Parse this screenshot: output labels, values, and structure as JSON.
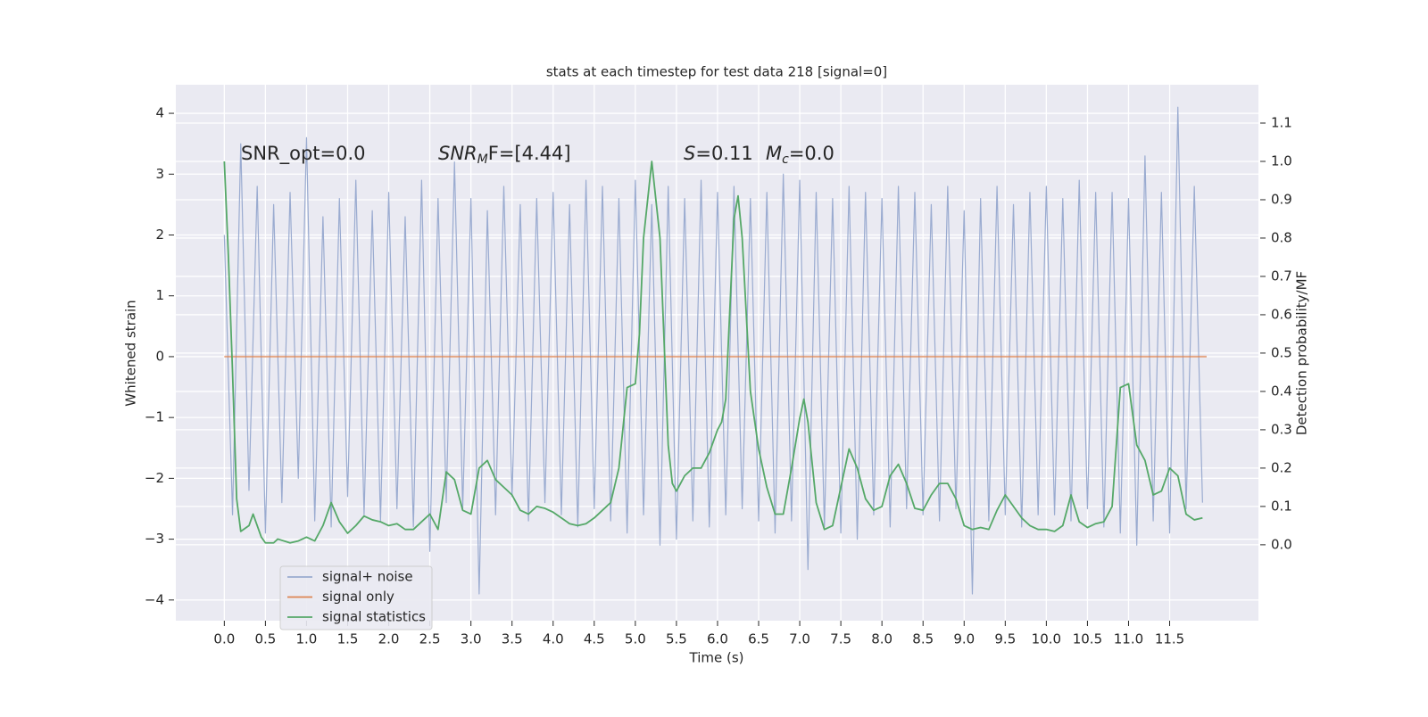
{
  "chart_data": {
    "type": "line",
    "title": "stats at each timestep for test data 218 [signal=0]",
    "xlabel": "Time (s)",
    "ylabel": "Whitened strain",
    "y2label": "Detection probability/MF",
    "xlim": [
      -0.59,
      12.58
    ],
    "ylim": [
      -4.34,
      4.47
    ],
    "y2lim": [
      -0.198,
      1.2
    ],
    "xticks": [
      {
        "value": 0,
        "label": "0.0"
      },
      0.5,
      {
        "value": 1,
        "label": "1.0"
      },
      1.5,
      {
        "value": 2,
        "label": "2.0"
      },
      2.5,
      {
        "value": 3,
        "label": "3.0"
      },
      3.5,
      {
        "value": 4,
        "label": "4.0"
      },
      4.5,
      {
        "value": 5,
        "label": "5.0"
      },
      5.5,
      {
        "value": 6,
        "label": "6.0"
      },
      6.5,
      {
        "value": 7,
        "label": "7.0"
      },
      7.5,
      {
        "value": 8,
        "label": "8.0"
      },
      8.5,
      {
        "value": 9,
        "label": "9.0"
      },
      9.5,
      {
        "value": 10,
        "label": "10.0"
      },
      10.5,
      {
        "value": 11,
        "label": "11.0"
      },
      11.5
    ],
    "yticks": [
      {
        "value": -4,
        "label": "−4"
      },
      {
        "value": -3,
        "label": "−3"
      },
      {
        "value": -2,
        "label": "−2"
      },
      {
        "value": -1,
        "label": "−1"
      },
      0,
      1,
      2,
      3,
      4
    ],
    "y2ticks": [
      {
        "value": 0,
        "label": "0.0"
      },
      0.1,
      0.2,
      0.3,
      0.4,
      0.5,
      0.6,
      0.7,
      0.8,
      0.9,
      {
        "value": 1,
        "label": "1.0"
      },
      1.1
    ],
    "grid": true,
    "legend": "lower left",
    "annotations": [
      "SNR_opt=0.0",
      [
        "SNR",
        "M",
        "F=[4.44]"
      ],
      [
        "S",
        "=0.11"
      ],
      [
        "M",
        "c",
        "=0.0"
      ]
    ],
    "series": [
      {
        "name": "signal+ noise",
        "color": "#9aabd0",
        "x": [
          0.0,
          0.1,
          0.2,
          0.3,
          0.4,
          0.5,
          0.6,
          0.7,
          0.8,
          0.9,
          1.0,
          1.1,
          1.2,
          1.3,
          1.4,
          1.5,
          1.6,
          1.7,
          1.8,
          1.9,
          2.0,
          2.1,
          2.2,
          2.3,
          2.4,
          2.5,
          2.6,
          2.7,
          2.8,
          2.9,
          3.0,
          3.1,
          3.2,
          3.3,
          3.4,
          3.5,
          3.6,
          3.7,
          3.8,
          3.9,
          4.0,
          4.1,
          4.2,
          4.3,
          4.4,
          4.5,
          4.6,
          4.7,
          4.8,
          4.9,
          5.0,
          5.1,
          5.2,
          5.3,
          5.4,
          5.5,
          5.6,
          5.7,
          5.8,
          5.9,
          6.0,
          6.1,
          6.2,
          6.3,
          6.4,
          6.5,
          6.6,
          6.7,
          6.8,
          6.9,
          7.0,
          7.1,
          7.2,
          7.3,
          7.4,
          7.5,
          7.6,
          7.7,
          7.8,
          7.9,
          8.0,
          8.1,
          8.2,
          8.3,
          8.4,
          8.5,
          8.6,
          8.7,
          8.8,
          8.9,
          9.0,
          9.1,
          9.2,
          9.3,
          9.4,
          9.5,
          9.6,
          9.7,
          9.8,
          9.9,
          10.0,
          10.1,
          10.2,
          10.3,
          10.4,
          10.5,
          10.6,
          10.7,
          10.8,
          10.9,
          11.0,
          11.1,
          11.2,
          11.3,
          11.4,
          11.5,
          11.6,
          11.7,
          11.8,
          11.9
        ],
        "values": [
          2.0,
          -2.6,
          3.5,
          -2.2,
          2.8,
          -2.9,
          2.5,
          -2.4,
          2.7,
          -2.0,
          3.6,
          -2.7,
          2.3,
          -2.8,
          2.6,
          -2.3,
          2.9,
          -2.6,
          2.4,
          -2.7,
          2.7,
          -2.5,
          2.3,
          -2.8,
          2.9,
          -3.2,
          2.6,
          -2.4,
          3.2,
          -2.5,
          2.6,
          -3.9,
          2.4,
          -2.6,
          2.8,
          -2.3,
          2.5,
          -2.7,
          2.6,
          -2.4,
          2.7,
          -2.6,
          2.5,
          -2.8,
          2.9,
          -2.5,
          2.8,
          -2.7,
          2.6,
          -2.9,
          2.9,
          -2.6,
          2.5,
          -3.1,
          2.8,
          -3.0,
          2.6,
          -2.7,
          2.9,
          -2.8,
          2.7,
          -2.6,
          2.8,
          -2.5,
          2.6,
          -2.7,
          2.7,
          -2.9,
          3.0,
          -2.7,
          2.9,
          -3.5,
          2.7,
          -2.8,
          2.6,
          -2.9,
          2.8,
          -3.0,
          2.7,
          -2.6,
          2.6,
          -2.8,
          2.8,
          -2.5,
          2.7,
          -2.6,
          2.5,
          -2.7,
          2.8,
          -2.5,
          2.4,
          -3.9,
          2.6,
          -2.7,
          2.8,
          -2.6,
          2.5,
          -2.8,
          2.7,
          -2.6,
          2.8,
          -2.6,
          2.6,
          -2.7,
          2.9,
          -2.5,
          2.7,
          -2.8,
          2.7,
          -2.9,
          2.6,
          -3.1,
          3.3,
          -2.7,
          2.7,
          -2.9,
          4.1,
          -2.5,
          2.8,
          -2.4
        ]
      },
      {
        "name": "signal only",
        "color": "#dd8452",
        "x": [
          0.0,
          11.95
        ],
        "values": [
          0,
          0
        ]
      },
      {
        "name": "signal statistics",
        "color": "#55a868",
        "axis": "y2",
        "x": [
          0.0,
          0.05,
          0.1,
          0.15,
          0.2,
          0.3,
          0.35,
          0.45,
          0.5,
          0.6,
          0.65,
          0.8,
          0.9,
          1.0,
          1.1,
          1.2,
          1.3,
          1.4,
          1.5,
          1.6,
          1.7,
          1.8,
          1.9,
          2.0,
          2.1,
          2.2,
          2.3,
          2.4,
          2.5,
          2.6,
          2.7,
          2.8,
          2.9,
          3.0,
          3.1,
          3.2,
          3.3,
          3.4,
          3.5,
          3.6,
          3.7,
          3.8,
          3.9,
          4.0,
          4.1,
          4.2,
          4.3,
          4.4,
          4.5,
          4.6,
          4.7,
          4.8,
          4.9,
          5.0,
          5.05,
          5.1,
          5.2,
          5.3,
          5.4,
          5.45,
          5.5,
          5.6,
          5.7,
          5.8,
          5.9,
          6.0,
          6.05,
          6.1,
          6.2,
          6.25,
          6.3,
          6.4,
          6.5,
          6.6,
          6.7,
          6.8,
          6.9,
          7.0,
          7.05,
          7.1,
          7.2,
          7.3,
          7.4,
          7.5,
          7.6,
          7.7,
          7.8,
          7.9,
          8.0,
          8.1,
          8.2,
          8.3,
          8.4,
          8.5,
          8.6,
          8.7,
          8.8,
          8.9,
          9.0,
          9.1,
          9.2,
          9.3,
          9.4,
          9.5,
          9.6,
          9.7,
          9.8,
          9.9,
          10.0,
          10.1,
          10.2,
          10.3,
          10.4,
          10.5,
          10.6,
          10.7,
          10.8,
          10.9,
          11.0,
          11.1,
          11.2,
          11.3,
          11.4,
          11.5,
          11.6,
          11.7,
          11.8,
          11.9
        ],
        "values": [
          1.0,
          0.75,
          0.45,
          0.12,
          0.035,
          0.05,
          0.08,
          0.02,
          0.005,
          0.005,
          0.015,
          0.005,
          0.01,
          0.02,
          0.01,
          0.05,
          0.11,
          0.06,
          0.03,
          0.05,
          0.075,
          0.065,
          0.06,
          0.05,
          0.055,
          0.04,
          0.04,
          0.06,
          0.08,
          0.04,
          0.19,
          0.17,
          0.09,
          0.08,
          0.2,
          0.22,
          0.17,
          0.15,
          0.13,
          0.09,
          0.08,
          0.1,
          0.095,
          0.085,
          0.07,
          0.055,
          0.05,
          0.055,
          0.07,
          0.09,
          0.11,
          0.2,
          0.41,
          0.42,
          0.55,
          0.8,
          1.0,
          0.8,
          0.26,
          0.16,
          0.14,
          0.18,
          0.2,
          0.2,
          0.24,
          0.3,
          0.32,
          0.38,
          0.85,
          0.91,
          0.8,
          0.4,
          0.25,
          0.15,
          0.08,
          0.08,
          0.2,
          0.33,
          0.38,
          0.32,
          0.11,
          0.04,
          0.05,
          0.15,
          0.25,
          0.2,
          0.12,
          0.09,
          0.1,
          0.18,
          0.21,
          0.16,
          0.095,
          0.09,
          0.13,
          0.16,
          0.16,
          0.12,
          0.05,
          0.04,
          0.045,
          0.04,
          0.09,
          0.13,
          0.1,
          0.07,
          0.05,
          0.04,
          0.04,
          0.035,
          0.05,
          0.13,
          0.06,
          0.045,
          0.055,
          0.06,
          0.1,
          0.41,
          0.42,
          0.26,
          0.22,
          0.13,
          0.14,
          0.2,
          0.18,
          0.08,
          0.065,
          0.07
        ]
      }
    ]
  }
}
